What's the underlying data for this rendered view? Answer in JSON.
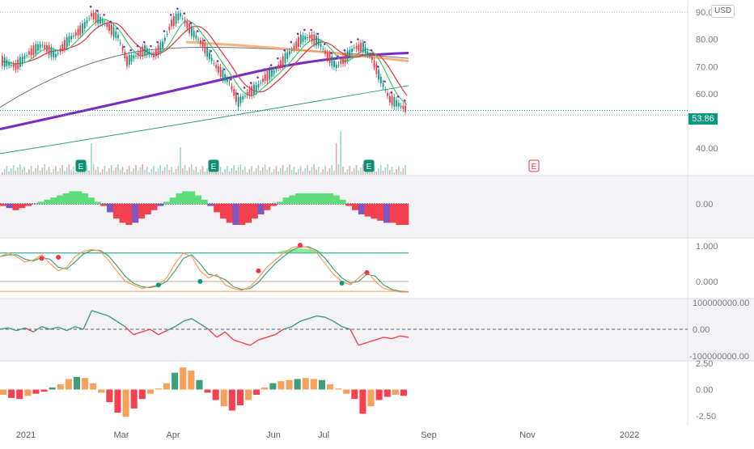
{
  "colors": {
    "up": "#089981",
    "down": "#f23645",
    "bg_panel": "#f3f3f6",
    "ma_purple": "#7b2cbf",
    "ma_orange": "#f5a25d",
    "ma_red": "#e0404a",
    "ma_green": "#3cc76a",
    "ma_teal": "#2f9e6f",
    "ma_gray": "#6e6e8f",
    "hist_green": "#5dde7a",
    "hist_red": "#f4414f",
    "hist_purple": "#7e57c2",
    "osc_orange": "#ff9b57",
    "osc_teal": "#3f9e7e"
  },
  "axis": {
    "currency": "USD",
    "x_labels": [
      "2021",
      "Mar",
      "Apr",
      "Jun",
      "Jul",
      "Sep",
      "Nov",
      "2022"
    ]
  },
  "chart_data": [
    {
      "type": "candlestick",
      "ylim": [
        35,
        90
      ],
      "y_ticks": [
        "90.00",
        "80.00",
        "70.00",
        "60.00",
        "50.00",
        "40.00"
      ],
      "last_price": "53.86",
      "earnings_markers": [
        "E",
        "E",
        "E",
        "E"
      ],
      "price_path": [
        [
          0,
          72
        ],
        [
          6,
          70
        ],
        [
          12,
          75
        ],
        [
          18,
          78
        ],
        [
          24,
          74
        ],
        [
          30,
          80
        ],
        [
          36,
          84
        ],
        [
          40,
          89
        ],
        [
          46,
          86
        ],
        [
          52,
          81
        ],
        [
          56,
          72
        ],
        [
          60,
          74
        ],
        [
          64,
          76
        ],
        [
          68,
          74
        ],
        [
          72,
          78
        ],
        [
          76,
          86
        ],
        [
          80,
          89
        ],
        [
          84,
          84
        ],
        [
          90,
          78
        ],
        [
          96,
          70
        ],
        [
          102,
          64
        ],
        [
          106,
          57
        ],
        [
          110,
          60
        ],
        [
          114,
          62
        ],
        [
          118,
          66
        ],
        [
          122,
          68
        ],
        [
          126,
          72
        ],
        [
          130,
          76
        ],
        [
          134,
          80
        ],
        [
          138,
          81
        ],
        [
          142,
          79
        ],
        [
          146,
          74
        ],
        [
          150,
          70
        ],
        [
          154,
          73
        ],
        [
          158,
          77
        ],
        [
          162,
          77
        ],
        [
          166,
          73
        ],
        [
          170,
          65
        ],
        [
          174,
          58
        ],
        [
          178,
          56
        ],
        [
          182,
          54
        ]
      ],
      "volume_peak_value": 52
    },
    {
      "type": "bar",
      "name": "histogram-1",
      "ylabel_ticks": [
        "0.00"
      ],
      "values": [
        -1,
        -2,
        -3,
        -2,
        -1,
        0,
        1,
        2,
        3,
        4,
        5,
        6,
        6,
        5,
        3,
        1,
        -1,
        -4,
        -7,
        -9,
        -10,
        -9,
        -7,
        -5,
        -3,
        -1,
        1,
        3,
        5,
        6,
        6,
        4,
        2,
        -1,
        -4,
        -7,
        -9,
        -10,
        -10,
        -9,
        -7,
        -5,
        -3,
        -1,
        1,
        3,
        4,
        5,
        5,
        5,
        5,
        5,
        5,
        4,
        2,
        -1,
        -3,
        -5,
        -6,
        -7,
        -8,
        -9,
        -9,
        -10,
        -10
      ]
    },
    {
      "type": "line",
      "name": "stochastic",
      "ylim": [
        -0.3,
        1.0
      ],
      "y_ticks": [
        "1.000",
        "0.000"
      ],
      "values": [
        0.7,
        0.8,
        0.7,
        0.55,
        0.6,
        0.75,
        0.5,
        0.3,
        0.4,
        0.7,
        0.85,
        0.9,
        0.85,
        0.6,
        0.3,
        0.0,
        -0.1,
        -0.2,
        -0.15,
        -0.1,
        0.1,
        0.5,
        0.8,
        0.7,
        0.3,
        0.1,
        0.2,
        -0.1,
        -0.2,
        -0.25,
        -0.15,
        0.1,
        0.4,
        0.6,
        0.8,
        0.95,
        1.0,
        0.95,
        0.8,
        0.5,
        0.2,
        0.0,
        -0.1,
        0.1,
        0.3,
        0.0,
        -0.2,
        -0.25,
        -0.3,
        -0.3
      ]
    },
    {
      "type": "line",
      "name": "flow",
      "ylim": [
        -100000000,
        100000000
      ],
      "y_ticks": [
        "100000000.00",
        "0.00",
        "-100000000.00"
      ],
      "values": [
        0.0,
        0.05,
        -0.05,
        0.05,
        -0.1,
        0.1,
        0.0,
        0.08,
        -0.05,
        0.1,
        0.0,
        0.7,
        0.6,
        0.5,
        0.3,
        0.1,
        -0.2,
        -0.1,
        0.0,
        -0.2,
        -0.05,
        0.1,
        0.3,
        0.4,
        0.2,
        0.0,
        -0.3,
        -0.1,
        -0.4,
        -0.5,
        -0.6,
        -0.4,
        -0.3,
        -0.2,
        0.0,
        0.1,
        0.3,
        0.4,
        0.5,
        0.45,
        0.3,
        0.1,
        0.0,
        -0.6,
        -0.5,
        -0.4,
        -0.3,
        -0.35,
        -0.25,
        -0.3
      ]
    },
    {
      "type": "bar",
      "name": "histogram-2",
      "ylim": [
        -2.5,
        2.5
      ],
      "y_ticks": [
        "2.50",
        "0.00",
        "-2.50"
      ],
      "values": [
        -0.5,
        -0.8,
        -0.9,
        -0.6,
        -0.4,
        -0.2,
        0.2,
        0.5,
        1.0,
        1.2,
        1.1,
        0.6,
        -0.3,
        -1.2,
        -2.2,
        -2.6,
        -1.8,
        -0.9,
        -0.4,
        0.1,
        0.6,
        1.6,
        2.1,
        1.8,
        0.9,
        -0.3,
        -1.0,
        -1.6,
        -2.0,
        -1.5,
        -1.0,
        -0.5,
        0.2,
        0.6,
        0.8,
        0.9,
        1.0,
        1.1,
        1.0,
        0.9,
        0.5,
        0.1,
        -0.4,
        -0.9,
        -2.3,
        -1.6,
        -1.0,
        -0.7,
        -0.5,
        -0.6
      ]
    }
  ]
}
